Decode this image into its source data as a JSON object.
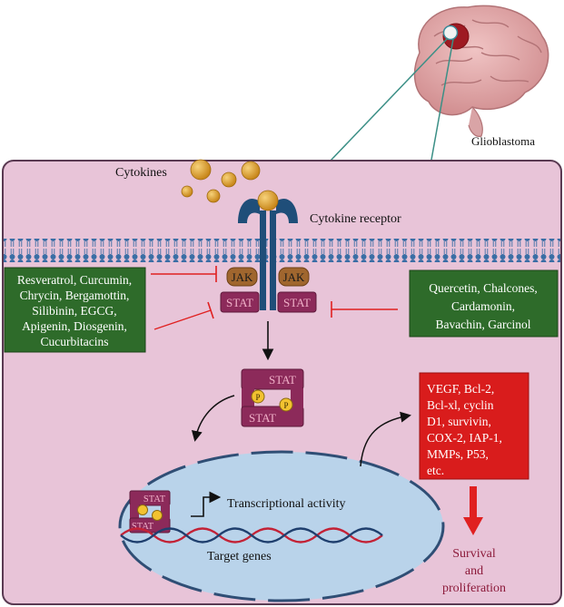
{
  "brain": {
    "label": "Glioblastoma"
  },
  "cytokines": {
    "label": "Cytokines"
  },
  "receptor": {
    "label": "Cytokine receptor"
  },
  "jak": {
    "left_label": "JAK",
    "right_label": "JAK"
  },
  "stat": {
    "left_label": "STAT",
    "right_label": "STAT"
  },
  "dimer": {
    "top_label": "STAT",
    "bottom_label": "STAT",
    "phospho_label": "P"
  },
  "nucleus": {
    "transcription_label": "Transcriptional activity",
    "genes_label": "Target genes",
    "dimer_top_label": "STAT",
    "dimer_bottom_label": "STAT"
  },
  "inhibitors_left": {
    "lines": [
      "Resveratrol, Curcumin,",
      "Chrycin, Bergamottin,",
      "Silibinin, EGCG,",
      "Apigenin, Diosgenin,",
      "Cucurbitacins"
    ]
  },
  "inhibitors_right": {
    "lines": [
      "Quercetin, Chalcones,",
      "Cardamonin,",
      "Bavachin, Garcinol"
    ]
  },
  "targets": {
    "lines": [
      "VEGF, Bcl-2,",
      "Bcl-xl, cyclin",
      "D1, survivin,",
      "COX-2, IAP-1,",
      "MMPs, P53,",
      "etc."
    ]
  },
  "outcome": {
    "lines": [
      "Survival",
      "and",
      "proliferation"
    ]
  },
  "colors": {
    "cell_fill": "#e8c4d8",
    "cell_border": "#5a3a52",
    "membrane_head": "#3a6ea5",
    "receptor": "#1f4e79",
    "jak": "#a0662e",
    "stat": "#8c2a5a",
    "inhibitor_box": "#2e6b2a",
    "target_box": "#d91c1c",
    "nucleus": "#b9d3ea",
    "ligand": "#e3a52a",
    "inhibition_line": "#e02020"
  }
}
